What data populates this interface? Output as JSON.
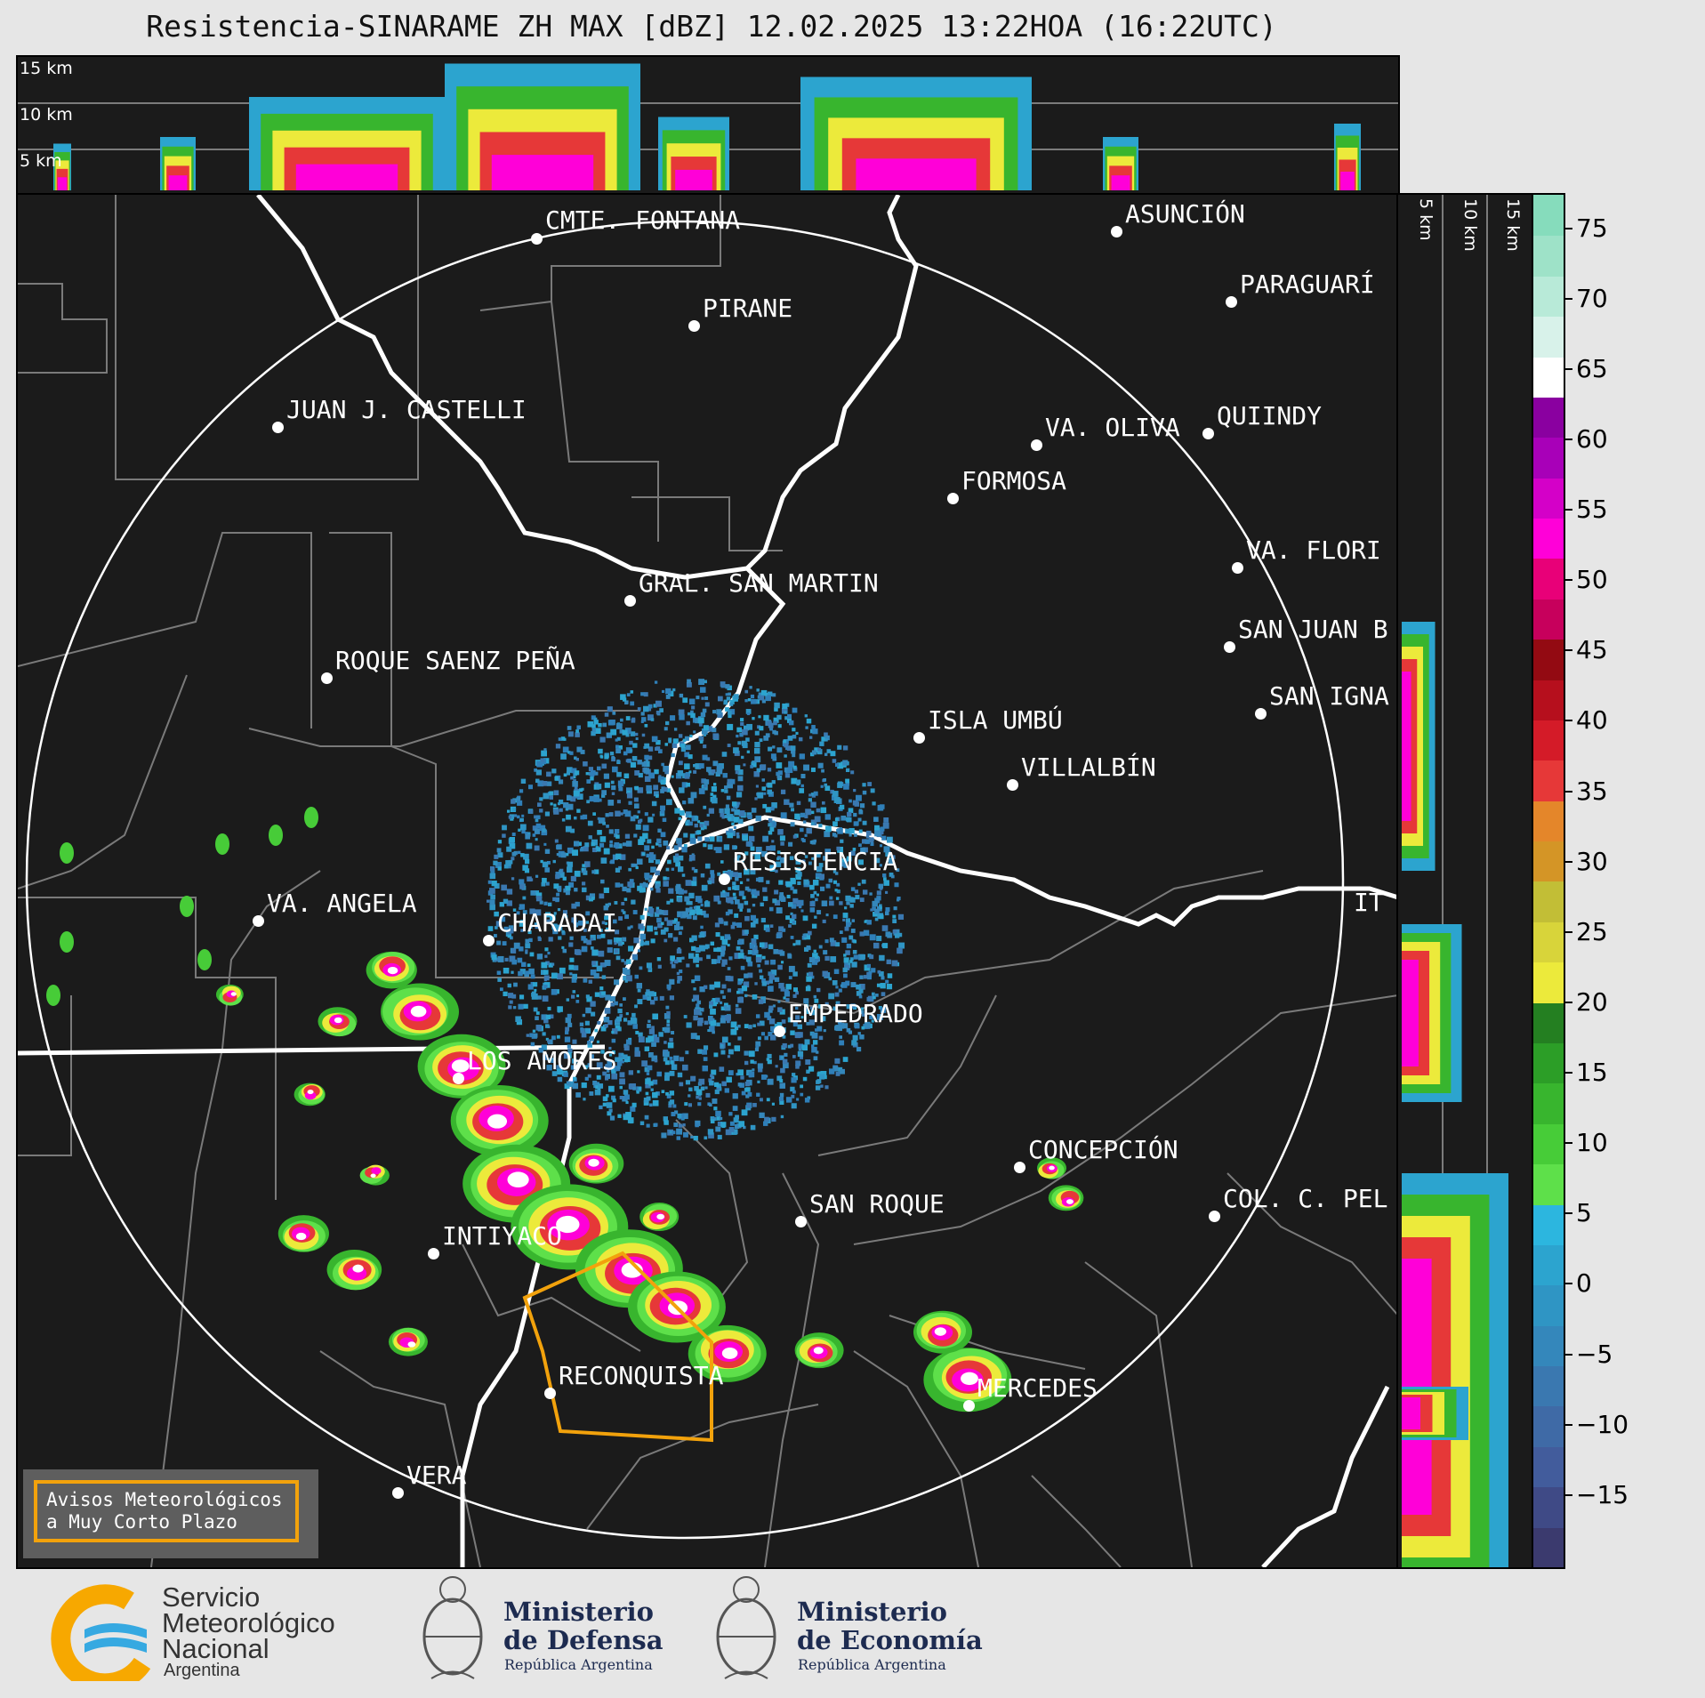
{
  "title": "Resistencia-SINARAME ZH MAX [dBZ] 12.02.2025 13:22HOA (16:22UTC)",
  "top_xsec": {
    "labels": [
      "15 km",
      "10 km",
      "5 km"
    ]
  },
  "side_xsec": {
    "labels": [
      "5 km",
      "10 km",
      "15 km"
    ]
  },
  "cities": [
    {
      "name": "CMTE. FONTANA"
    },
    {
      "name": "ASUNCIÓN"
    },
    {
      "name": "PARAGUARÍ"
    },
    {
      "name": "PIRANE"
    },
    {
      "name": "JUAN J. CASTELLI"
    },
    {
      "name": "VA. OLIVA"
    },
    {
      "name": "QUIINDY"
    },
    {
      "name": "FORMOSA"
    },
    {
      "name": "VA. FLORI"
    },
    {
      "name": "GRAL. SAN MARTIN"
    },
    {
      "name": "SAN JUAN B"
    },
    {
      "name": "ROQUE SAENZ PEÑA"
    },
    {
      "name": "SAN IGNA"
    },
    {
      "name": "ISLA UMBÚ"
    },
    {
      "name": "VILLALBÍN"
    },
    {
      "name": "RESISTENCIA"
    },
    {
      "name": "VA. ANGELA"
    },
    {
      "name": "CHARADAI"
    },
    {
      "name": "IT"
    },
    {
      "name": "EMPEDRADO"
    },
    {
      "name": "LOS AMORES"
    },
    {
      "name": "CONCEPCIÓN"
    },
    {
      "name": "SAN ROQUE"
    },
    {
      "name": "COL. C. PEL"
    },
    {
      "name": "INTIYACO"
    },
    {
      "name": "RECONQUISTA"
    },
    {
      "name": "MERCEDES"
    },
    {
      "name": "VERA"
    }
  ],
  "colorbar": {
    "unit": "dBZ",
    "labels": [
      "75",
      "70",
      "65",
      "60",
      "55",
      "50",
      "45",
      "40",
      "35",
      "30",
      "25",
      "20",
      "15",
      "10",
      "5",
      "0",
      "−5",
      "−10",
      "−15"
    ],
    "colors": [
      "#3b3a6e",
      "#3f4a86",
      "#425c9c",
      "#3f6aa6",
      "#3a78b0",
      "#3487bb",
      "#2f95c4",
      "#2ca4cf",
      "#2cb6df",
      "#5ee04a",
      "#47cc38",
      "#38b52e",
      "#2c9e27",
      "#247f21",
      "#ecea3b",
      "#d8d43a",
      "#c2be36",
      "#d49526",
      "#e4862a",
      "#e63838",
      "#d41b28",
      "#b60f1d",
      "#930a12",
      "#c7005c",
      "#e80078",
      "#ff00d8",
      "#d400c8",
      "#a800b8",
      "#8a00a0",
      "#ffffff",
      "#d8f2ea",
      "#b8ead8",
      "#9ee2c8",
      "#86dcbc"
    ]
  },
  "warning_box": {
    "line1": "Avisos Meteorológicos",
    "line2": "a Muy Corto Plazo"
  },
  "logos": {
    "smn": {
      "line1": "Servicio",
      "line2": "Meteorológico",
      "line3": "Nacional",
      "line4": "Argentina"
    },
    "defensa": {
      "line1": "Ministerio",
      "line2": "de Defensa",
      "sub": "República Argentina"
    },
    "economia": {
      "line1": "Ministerio",
      "line2": "de Economía",
      "sub": "República Argentina"
    }
  },
  "colors": {
    "warning_polygon": "#f2a20c",
    "map_background": "#1b1b1b",
    "borders": "#7a7a7a"
  }
}
